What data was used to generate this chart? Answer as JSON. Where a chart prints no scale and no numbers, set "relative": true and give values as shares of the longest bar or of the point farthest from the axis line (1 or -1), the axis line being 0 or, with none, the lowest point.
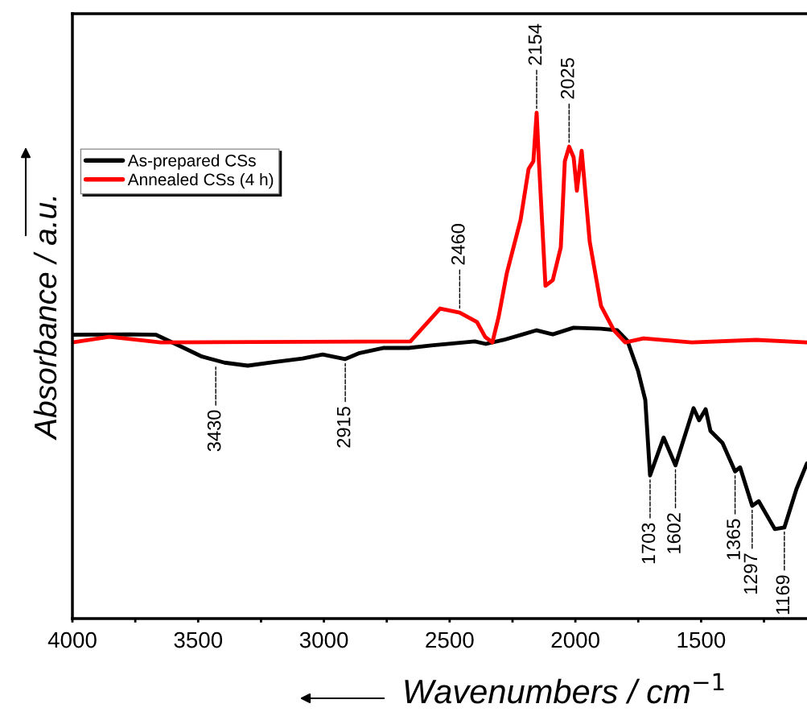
{
  "chart_data": {
    "type": "line",
    "relative": true,
    "xlabel": "Wavenumbers / cm$^{−1}$",
    "ylabel": "Absorbance / a.u.",
    "xlim": [
      4000,
      1079
    ],
    "xticks": [
      4000,
      {
        "value": 3750,
        "label": null
      },
      3500,
      {
        "value": 3250,
        "label": null
      },
      3000,
      {
        "value": 2750,
        "label": null
      },
      2500,
      {
        "value": 2250,
        "label": null
      },
      2000,
      {
        "value": 1750,
        "label": null
      },
      1500,
      {
        "value": 1250,
        "label": null
      }
    ],
    "legend": "top left",
    "grid": false,
    "marker": "none",
    "line_style": "solid",
    "series": [
      {
        "name": "As-prepared CSs",
        "color": "#000000",
        "x": [
          4000,
          3773,
          3667,
          3565,
          3485,
          3395,
          3303,
          3200,
          3085,
          3005,
          2915,
          2858,
          2765,
          2663,
          2573,
          2400,
          2356,
          2285,
          2209,
          2154,
          2090,
          2007,
          1898,
          1834,
          1793,
          1751,
          1722,
          1703,
          1649,
          1602,
          1530,
          1508,
          1482,
          1463,
          1415,
          1365,
          1345,
          1297,
          1271,
          1207,
          1169,
          1121,
          1079
        ],
        "values": [
          0.561,
          0.562,
          0.561,
          0.537,
          0.518,
          0.506,
          0.5,
          0.507,
          0.514,
          0.522,
          0.513,
          0.525,
          0.535,
          0.535,
          0.54,
          0.548,
          0.543,
          0.551,
          0.562,
          0.57,
          0.562,
          0.575,
          0.573,
          0.57,
          0.549,
          0.49,
          0.432,
          0.283,
          0.358,
          0.303,
          0.416,
          0.392,
          0.414,
          0.371,
          0.347,
          0.291,
          0.299,
          0.223,
          0.232,
          0.177,
          0.18,
          0.256,
          0.307
        ]
      },
      {
        "name": "Annealed CSs (4 h)",
        "color": "#ff0000",
        "x": [
          4000,
          3853,
          3648,
          2656,
          2538,
          2460,
          2391,
          2359,
          2330,
          2305,
          2273,
          2218,
          2186,
          2167,
          2154,
          2145,
          2119,
          2090,
          2058,
          2042,
          2025,
          2007,
          1994,
          1975,
          1943,
          1898,
          1847,
          1802,
          1729,
          1537,
          1281,
          1079
        ],
        "values": [
          0.546,
          0.557,
          0.546,
          0.548,
          0.613,
          0.605,
          0.586,
          0.557,
          0.546,
          0.597,
          0.682,
          0.788,
          0.889,
          0.904,
          1.0,
          0.904,
          0.658,
          0.669,
          0.734,
          0.904,
          0.933,
          0.912,
          0.846,
          0.925,
          0.745,
          0.618,
          0.57,
          0.546,
          0.554,
          0.546,
          0.551,
          0.546
        ]
      }
    ],
    "annotations": [
      {
        "text": "3430",
        "x": 3430,
        "y": 0.506
      },
      {
        "text": "2915",
        "x": 2915,
        "y": 0.513
      },
      {
        "text": "2460",
        "x": 2460,
        "y": 0.605
      },
      {
        "text": "2154",
        "x": 2154,
        "y": 1.0
      },
      {
        "text": "2025",
        "x": 2025,
        "y": 0.933
      },
      {
        "text": "1703",
        "x": 1703,
        "y": 0.283
      },
      {
        "text": "1602",
        "x": 1602,
        "y": 0.303
      },
      {
        "text": "1365",
        "x": 1365,
        "y": 0.291
      },
      {
        "text": "1297",
        "x": 1297,
        "y": 0.223
      },
      {
        "text": "1169",
        "x": 1169,
        "y": 0.18
      }
    ]
  }
}
